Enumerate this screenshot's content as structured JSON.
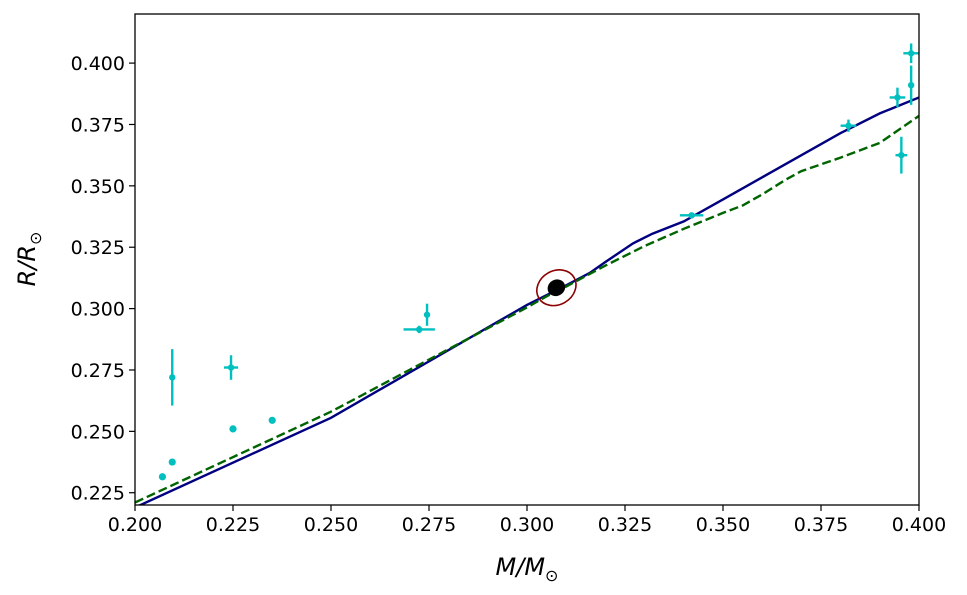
{
  "chart_data": {
    "type": "scatter",
    "xlabel": "M/M",
    "xlabel_sub": "⊙",
    "ylabel": "R/R",
    "ylabel_sub": "⊙",
    "xlim": [
      0.2,
      0.4
    ],
    "ylim": [
      0.22,
      0.42
    ],
    "x_ticks": [
      "0.200",
      "0.225",
      "0.250",
      "0.275",
      "0.300",
      "0.325",
      "0.350",
      "0.375",
      "0.400"
    ],
    "y_ticks": [
      "0.225",
      "0.250",
      "0.275",
      "0.300",
      "0.325",
      "0.350",
      "0.375",
      "0.400"
    ],
    "grid": false,
    "colors": {
      "solid_model": "#000080",
      "dashed_model": "#006400",
      "errorbar_points": "#00bfbf",
      "target": "#000000",
      "confidence_ellipse": "#8b0000"
    },
    "series": [
      {
        "kind": "line",
        "style": "solid",
        "points": [
          [
            0.2,
            0.219
          ],
          [
            0.25,
            0.2555
          ],
          [
            0.3,
            0.3015
          ],
          [
            0.31,
            0.3095
          ],
          [
            0.316,
            0.3145
          ],
          [
            0.32,
            0.319
          ],
          [
            0.327,
            0.3265
          ],
          [
            0.332,
            0.3305
          ],
          [
            0.34,
            0.3355
          ],
          [
            0.35,
            0.3445
          ],
          [
            0.36,
            0.3535
          ],
          [
            0.37,
            0.3625
          ],
          [
            0.38,
            0.3715
          ],
          [
            0.39,
            0.3795
          ],
          [
            0.4,
            0.386
          ]
        ]
      },
      {
        "kind": "line",
        "style": "dashed",
        "points": [
          [
            0.2,
            0.221
          ],
          [
            0.25,
            0.258
          ],
          [
            0.3,
            0.3005
          ],
          [
            0.305,
            0.305
          ],
          [
            0.31,
            0.309
          ],
          [
            0.32,
            0.3175
          ],
          [
            0.33,
            0.3255
          ],
          [
            0.34,
            0.3325
          ],
          [
            0.35,
            0.339
          ],
          [
            0.355,
            0.342
          ],
          [
            0.36,
            0.3465
          ],
          [
            0.366,
            0.3525
          ],
          [
            0.37,
            0.356
          ],
          [
            0.38,
            0.3615
          ],
          [
            0.39,
            0.3675
          ],
          [
            0.4,
            0.3785
          ]
        ]
      },
      {
        "kind": "errorbar",
        "points": [
          {
            "x": 0.2095,
            "y": 0.272,
            "xerr": 0.0005,
            "yerr": 0.0115
          },
          {
            "x": 0.2245,
            "y": 0.276,
            "xerr": 0.0018,
            "yerr": 0.005
          },
          {
            "x": 0.2725,
            "y": 0.2915,
            "xerr": 0.004,
            "yerr": 0.0015
          },
          {
            "x": 0.2745,
            "y": 0.2975,
            "xerr": 0.0005,
            "yerr": 0.0045
          },
          {
            "x": 0.342,
            "y": 0.338,
            "xerr": 0.003,
            "yerr": 0.001
          },
          {
            "x": 0.382,
            "y": 0.3745,
            "xerr": 0.002,
            "yerr": 0.0025
          },
          {
            "x": 0.3945,
            "y": 0.386,
            "xerr": 0.002,
            "yerr": 0.004
          },
          {
            "x": 0.3955,
            "y": 0.3625,
            "xerr": 0.0015,
            "yerr": 0.0075
          },
          {
            "x": 0.398,
            "y": 0.404,
            "xerr": 0.002,
            "yerr": 0.004
          },
          {
            "x": 0.398,
            "y": 0.391,
            "xerr": 0.0005,
            "yerr": 0.008
          }
        ]
      },
      {
        "kind": "dots",
        "points": [
          [
            0.207,
            0.2315
          ],
          [
            0.2095,
            0.2375
          ],
          [
            0.225,
            0.251
          ],
          [
            0.235,
            0.2545
          ]
        ]
      },
      {
        "kind": "target",
        "x": 0.3075,
        "y": 0.3085,
        "ellipse": {
          "sx": 0.0023,
          "sy": 0.0033,
          "rx_outer": 0.0052,
          "ry_outer": 0.0069
        }
      }
    ]
  }
}
